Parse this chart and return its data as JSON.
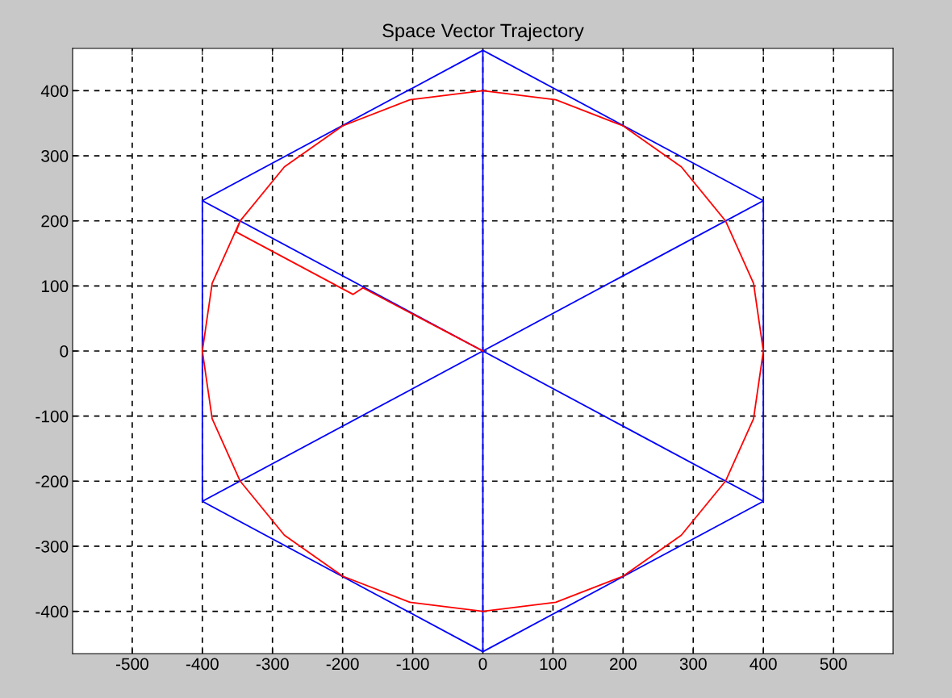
{
  "chart_data": {
    "type": "line",
    "title": "Space Vector Trajectory",
    "xlim": [
      -585,
      585
    ],
    "ylim": [
      -465,
      465
    ],
    "xticks": [
      -500,
      -400,
      -300,
      -200,
      -100,
      0,
      100,
      200,
      300,
      400,
      500
    ],
    "yticks": [
      -400,
      -300,
      -200,
      -100,
      0,
      100,
      200,
      300,
      400
    ],
    "grid": true,
    "marker": "none",
    "line_style": "solid",
    "series": [
      {
        "color": "#0000ff",
        "x": [
          0,
          400,
          400,
          0,
          -400,
          -400,
          0,
          0,
          -400,
          400,
          400,
          -400
        ],
        "values": [
          462,
          231,
          -231,
          -462,
          -231,
          231,
          462,
          -462,
          -231,
          231,
          -231,
          231
        ]
      },
      {
        "color": "#ff0000",
        "x": [
          0,
          -171,
          -185,
          -352,
          -346,
          -386,
          -400,
          -386,
          -346,
          -283,
          -200,
          -104,
          0,
          104,
          200,
          283,
          346,
          386,
          400,
          386,
          346,
          283,
          200,
          104,
          0,
          -104,
          -200,
          -283,
          -346
        ],
        "values": [
          0,
          97,
          87,
          183,
          200,
          104,
          0,
          -104,
          -200,
          -283,
          -346,
          -386,
          -400,
          -386,
          -346,
          -283,
          -200,
          -104,
          0,
          104,
          200,
          283,
          346,
          386,
          400,
          386,
          346,
          283,
          200
        ]
      }
    ]
  }
}
